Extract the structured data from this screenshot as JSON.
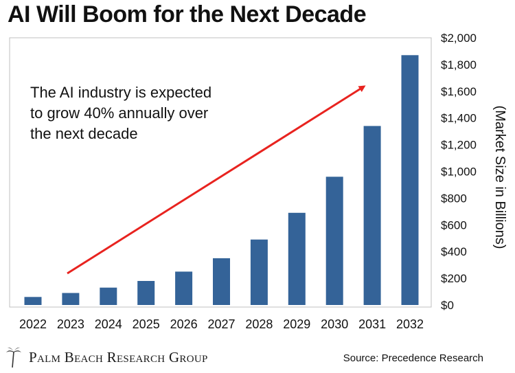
{
  "title": "AI Will Boom for the Next Decade",
  "annotation": {
    "lines": [
      "The AI industry is expected",
      "to grow 40% annually over",
      "the next decade"
    ]
  },
  "logo_text": "Palm Beach Research Group",
  "source": "Source: Precedence Research",
  "colors": {
    "bar": "#346398",
    "arrow": "#e8231f",
    "frame": "#bfbfbf"
  },
  "chart_data": {
    "type": "bar",
    "title": "AI Will Boom for the Next Decade",
    "categories": [
      "2022",
      "2023",
      "2024",
      "2025",
      "2026",
      "2027",
      "2028",
      "2029",
      "2030",
      "2031",
      "2032"
    ],
    "values": [
      60,
      90,
      130,
      180,
      250,
      350,
      490,
      690,
      960,
      1340,
      1870
    ],
    "ylabel": "(Market Size in Billions)",
    "ylim": [
      0,
      2000
    ],
    "yticks": [
      0,
      200,
      400,
      600,
      800,
      1000,
      1200,
      1400,
      1600,
      1800,
      2000
    ],
    "ytick_labels": [
      "$0",
      "$200",
      "$400",
      "$600",
      "$800",
      "$1,000",
      "$1,200",
      "$1,400",
      "$1,600",
      "$1,800",
      "$2,000"
    ],
    "y_axis_position": "right",
    "grid": false,
    "legend": false
  }
}
